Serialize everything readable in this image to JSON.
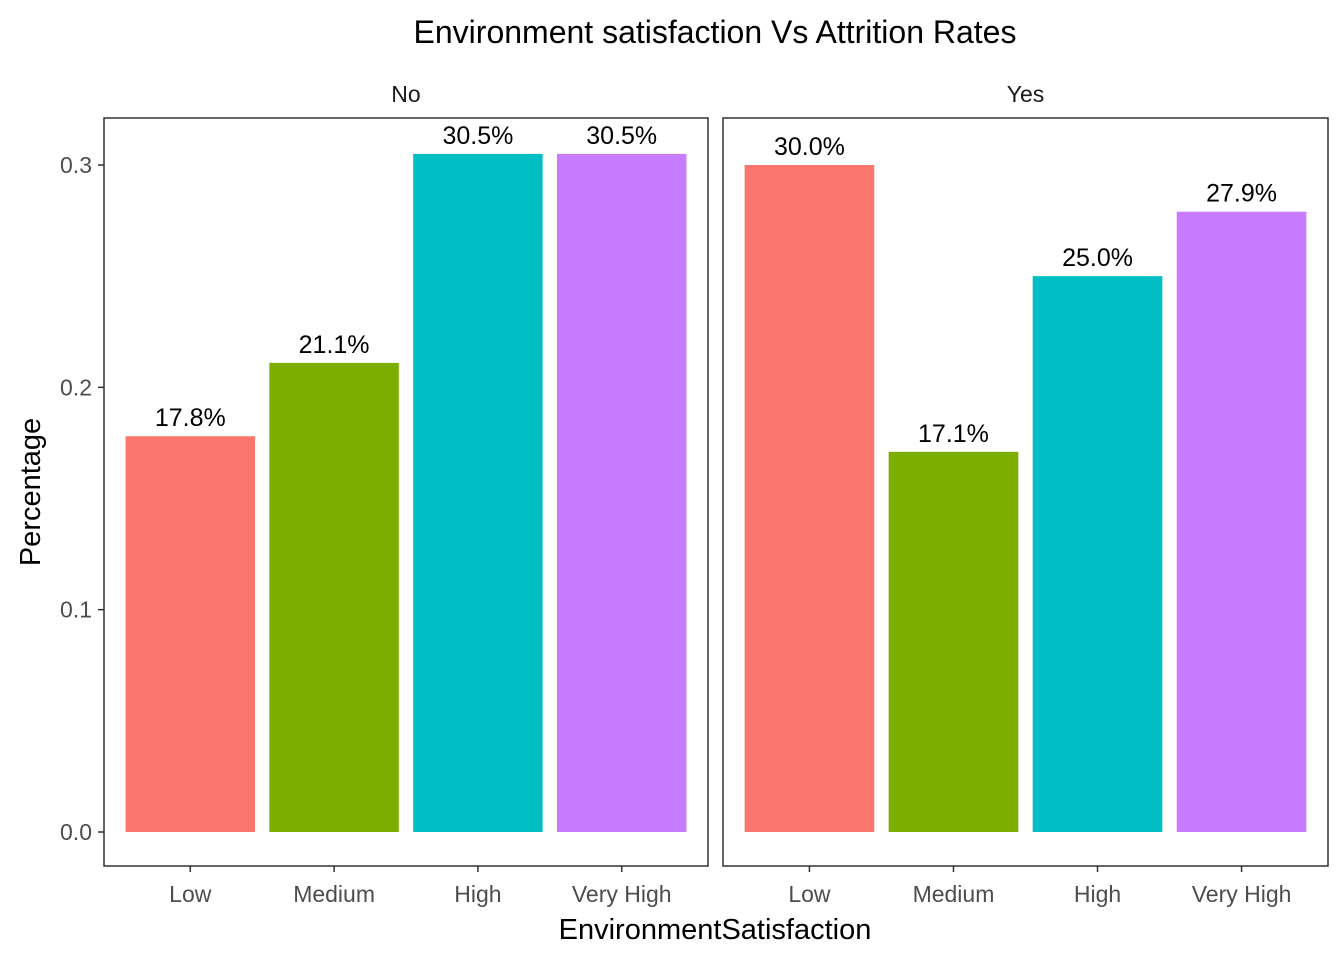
{
  "chart_data": {
    "type": "bar",
    "title": "Environment satisfaction Vs Attrition Rates",
    "xlabel": "EnvironmentSatisfaction",
    "ylabel": "Percentage",
    "ylim": [
      0,
      0.32
    ],
    "yticks": [
      "0.0",
      "0.1",
      "0.2",
      "0.3"
    ],
    "categories": [
      "Low",
      "Medium",
      "High",
      "Very High"
    ],
    "colors": [
      "#F8766D",
      "#7CAE00",
      "#00BFC4",
      "#C77CFF"
    ],
    "grid": false,
    "legend": "none",
    "facets": [
      {
        "label": "No",
        "values": [
          0.178,
          0.211,
          0.305,
          0.305
        ],
        "labels": [
          "17.8%",
          "21.1%",
          "30.5%",
          "30.5%"
        ]
      },
      {
        "label": "Yes",
        "values": [
          0.3,
          0.171,
          0.25,
          0.279
        ],
        "labels": [
          "30.0%",
          "17.1%",
          "25.0%",
          "27.9%"
        ]
      }
    ]
  }
}
